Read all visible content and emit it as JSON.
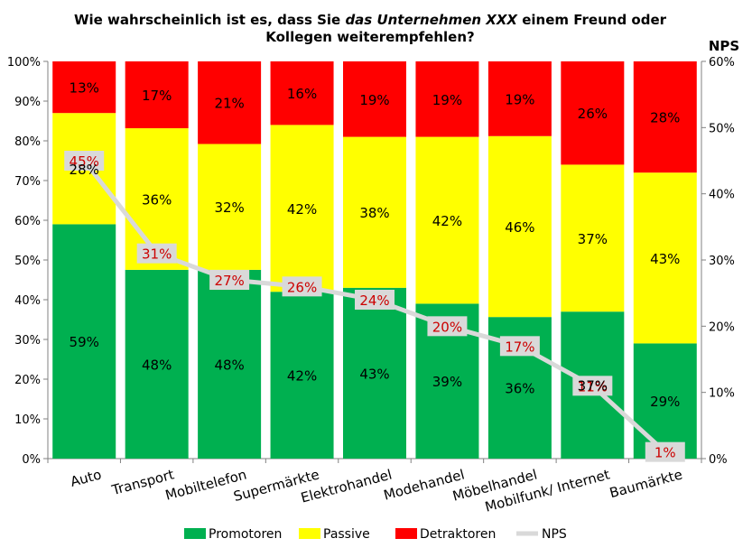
{
  "chart_data": {
    "type": "bar",
    "stacked": true,
    "title_prefix": "Wie wahrscheinlich ist es, dass Sie ",
    "title_italic": "das Unternehmen XXX",
    "title_suffix": " einem Freund oder Kollegen weiterempfehlen?",
    "y2label": "NPS",
    "categories": [
      "Auto",
      "Transport",
      "Mobiltelefon",
      "Supermärkte",
      "Elektrohandel",
      "Modehandel",
      "Möbelhandel",
      "Mobilfunk/ Internet",
      "Baumärkte"
    ],
    "series": [
      {
        "name": "Promotoren",
        "color": "#00b050",
        "values": [
          59,
          48,
          48,
          42,
          43,
          39,
          36,
          37,
          29
        ]
      },
      {
        "name": "Passive",
        "color": "#ffff00",
        "values": [
          28,
          36,
          32,
          42,
          38,
          42,
          46,
          37,
          43
        ]
      },
      {
        "name": "Detraktoren",
        "color": "#ff0000",
        "values": [
          13,
          17,
          21,
          16,
          19,
          19,
          19,
          26,
          28
        ]
      }
    ],
    "nps": {
      "name": "NPS",
      "color": "#d9d9d9",
      "values": [
        45,
        31,
        27,
        26,
        24,
        20,
        17,
        11,
        1
      ]
    },
    "ylim": [
      0,
      100
    ],
    "y2lim": [
      0,
      60
    ],
    "yticks": [
      "0%",
      "10%",
      "20%",
      "30%",
      "40%",
      "50%",
      "60%",
      "70%",
      "80%",
      "90%",
      "100%"
    ],
    "y2ticks": [
      "0%",
      "10%",
      "20%",
      "30%",
      "40%",
      "50%",
      "60%"
    ],
    "legend_position": "bottom",
    "grid": false
  }
}
